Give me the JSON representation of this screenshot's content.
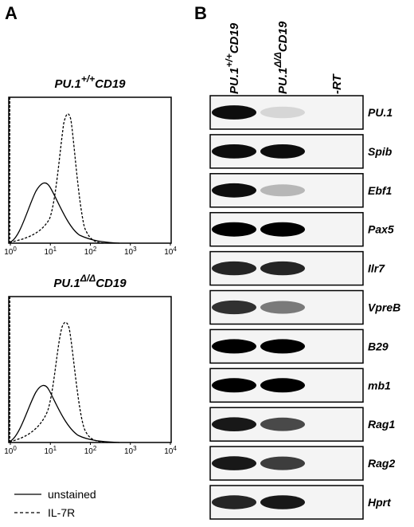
{
  "panel_a": {
    "label": "A",
    "plots": [
      {
        "title": {
          "gene": "PU.1",
          "genotype": "+/+",
          "suffix": "CD19"
        }
      },
      {
        "title": {
          "gene": "PU.1",
          "genotype": "Δ/Δ",
          "suffix": "CD19"
        }
      }
    ],
    "x_ticks": [
      {
        "base": "10",
        "exp": "0"
      },
      {
        "base": "10",
        "exp": "1"
      },
      {
        "base": "10",
        "exp": "2"
      },
      {
        "base": "10",
        "exp": "3"
      },
      {
        "base": "10",
        "exp": "4"
      }
    ],
    "legend": [
      "unstained",
      "IL-7R"
    ]
  },
  "panel_b": {
    "label": "B",
    "columns": [
      {
        "gene": "PU.1",
        "genotype": "+/+",
        "suffix": "CD19"
      },
      {
        "gene": "PU.1",
        "genotype": "Δ/Δ",
        "suffix": "CD19"
      },
      {
        "text": "-RT"
      }
    ],
    "genes": [
      "PU.1",
      "Spib",
      "Ebf1",
      "Pax5",
      "Ilr7",
      "VpreB",
      "B29",
      "mb1",
      "Rag1",
      "Rag2",
      "Hprt"
    ]
  }
}
